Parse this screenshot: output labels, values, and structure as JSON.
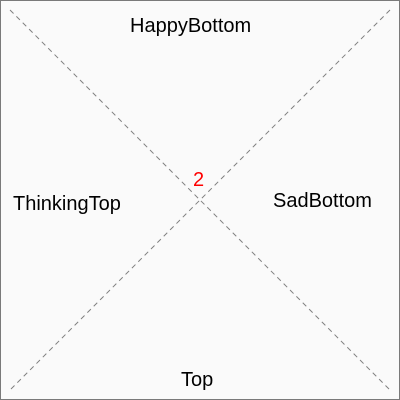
{
  "labels": {
    "top": "HappyBottom",
    "left": "ThinkingTop",
    "right": "SadBottom",
    "bottom": "Top"
  },
  "center": {
    "value": "2",
    "color": "#ff0000"
  },
  "colors": {
    "border": "#7a7a7a",
    "background": "#fafafa",
    "diagonal": "#808080",
    "text": "#000000"
  }
}
